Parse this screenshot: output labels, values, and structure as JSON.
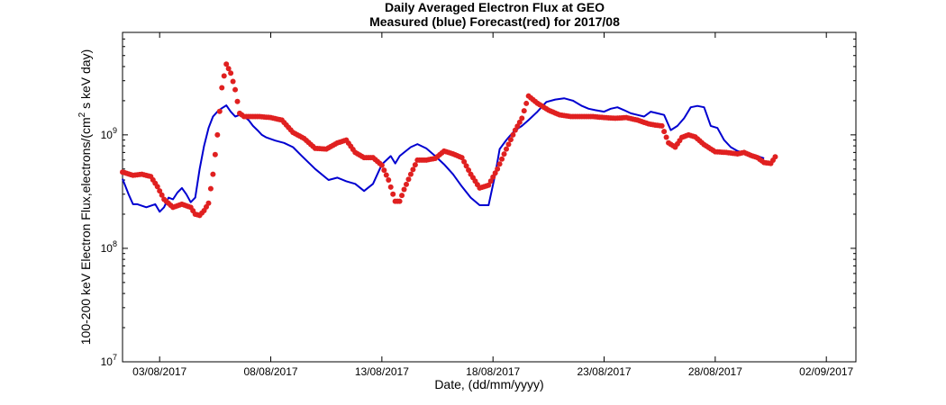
{
  "chart_data": {
    "type": "line",
    "title": [
      "Daily Averaged Electron Flux at GEO",
      "Measured (blue) Forecast(red) for 2017/08"
    ],
    "xlabel": "Date, (dd/mm/yyyy)",
    "ylabel": "100-200 keV Electron Flux,electrons/(cm² s keV day)",
    "x_axis": {
      "unit": "days since 01/08/2017",
      "range": [
        0.33,
        33.33
      ],
      "ticks": [
        {
          "value": 2,
          "label": "03/08/2017"
        },
        {
          "value": 7,
          "label": "08/08/2017"
        },
        {
          "value": 12,
          "label": "13/08/2017"
        },
        {
          "value": 17,
          "label": "18/08/2017"
        },
        {
          "value": 22,
          "label": "23/08/2017"
        },
        {
          "value": 27,
          "label": "28/08/2017"
        },
        {
          "value": 32,
          "label": "02/09/2017"
        }
      ]
    },
    "y_axis": {
      "scale": "log",
      "range": [
        10000000.0,
        8000000000.0
      ],
      "ticks": [
        {
          "value": 10000000.0,
          "base": "10",
          "exp": "7"
        },
        {
          "value": 100000000.0,
          "base": "10",
          "exp": "8"
        },
        {
          "value": 1000000000.0,
          "base": "10",
          "exp": "9"
        }
      ]
    },
    "grid": false,
    "series": [
      {
        "name": "Measured",
        "color": "#0000d0",
        "style": "line",
        "x": [
          0.33,
          0.6,
          0.8,
          1.0,
          1.4,
          1.8,
          2.0,
          2.2,
          2.4,
          2.6,
          2.8,
          3.0,
          3.2,
          3.4,
          3.6,
          3.8,
          4.0,
          4.2,
          4.4,
          4.6,
          4.8,
          5.0,
          5.2,
          5.4,
          5.6,
          5.8,
          6.0,
          6.2,
          6.4,
          6.6,
          6.8,
          7.0,
          7.2,
          7.6,
          8.0,
          8.4,
          9.0,
          9.6,
          10.0,
          10.4,
          10.8,
          11.2,
          11.6,
          12.0,
          12.4,
          12.6,
          12.8,
          13.0,
          13.3,
          13.6,
          14.0,
          14.4,
          14.8,
          15.2,
          15.6,
          16.0,
          16.4,
          16.8,
          17.1,
          17.3,
          17.6,
          17.8,
          18.0,
          18.3,
          18.6,
          19.0,
          19.4,
          19.8,
          20.2,
          20.6,
          21.0,
          21.3,
          21.6,
          22.0,
          22.3,
          22.6,
          22.9,
          23.2,
          23.5,
          23.8,
          24.1,
          24.4,
          24.7,
          25.0,
          25.3,
          25.6,
          25.9,
          26.2,
          26.5,
          26.8,
          27.1,
          27.4,
          27.7,
          28.0,
          28.3,
          28.6,
          28.9,
          29.2
        ],
        "y": [
          410000000.0,
          300000000.0,
          245000000.0,
          245000000.0,
          230000000.0,
          245000000.0,
          210000000.0,
          230000000.0,
          280000000.0,
          270000000.0,
          310000000.0,
          340000000.0,
          300000000.0,
          255000000.0,
          280000000.0,
          500000000.0,
          800000000.0,
          1150000000.0,
          1450000000.0,
          1600000000.0,
          1720000000.0,
          1820000000.0,
          1600000000.0,
          1450000000.0,
          1500000000.0,
          1450000000.0,
          1350000000.0,
          1200000000.0,
          1100000000.0,
          1000000000.0,
          950000000.0,
          920000000.0,
          890000000.0,
          850000000.0,
          780000000.0,
          650000000.0,
          500000000.0,
          400000000.0,
          420000000.0,
          390000000.0,
          370000000.0,
          320000000.0,
          370000000.0,
          550000000.0,
          650000000.0,
          560000000.0,
          650000000.0,
          700000000.0,
          780000000.0,
          830000000.0,
          760000000.0,
          650000000.0,
          550000000.0,
          450000000.0,
          350000000.0,
          280000000.0,
          240000000.0,
          240000000.0,
          450000000.0,
          750000000.0,
          900000000.0,
          1000000000.0,
          1100000000.0,
          1200000000.0,
          1350000000.0,
          1600000000.0,
          1950000000.0,
          2050000000.0,
          2100000000.0,
          2000000000.0,
          1800000000.0,
          1700000000.0,
          1650000000.0,
          1600000000.0,
          1700000000.0,
          1750000000.0,
          1650000000.0,
          1550000000.0,
          1500000000.0,
          1450000000.0,
          1600000000.0,
          1550000000.0,
          1500000000.0,
          1100000000.0,
          1200000000.0,
          1400000000.0,
          1750000000.0,
          1800000000.0,
          1750000000.0,
          1200000000.0,
          1150000000.0,
          900000000.0,
          780000000.0,
          720000000.0,
          700000000.0,
          680000000.0,
          650000000.0,
          620000000.0
        ]
      },
      {
        "name": "Forecast",
        "color": "#e02020",
        "style": "markers",
        "x": [
          0.33,
          0.8,
          1.2,
          1.6,
          1.9,
          2.2,
          2.6,
          3.0,
          3.4,
          3.6,
          3.8,
          4.0,
          4.2,
          4.4,
          4.6,
          4.8,
          5.0,
          5.2,
          5.4,
          5.6,
          5.8,
          6.0,
          6.5,
          7.0,
          7.5,
          8.0,
          8.5,
          9.0,
          9.5,
          10.0,
          10.4,
          10.8,
          11.2,
          11.6,
          12.0,
          12.3,
          12.6,
          12.8,
          13.0,
          13.3,
          13.6,
          14.0,
          14.4,
          14.8,
          15.2,
          15.6,
          16.0,
          16.4,
          16.8,
          17.2,
          17.6,
          18.0,
          18.3,
          18.6,
          19.0,
          19.5,
          20.0,
          20.5,
          21.0,
          21.5,
          22.0,
          22.5,
          23.0,
          23.5,
          24.0,
          24.3,
          24.6,
          24.9,
          25.2,
          25.5,
          25.8,
          26.1,
          26.5,
          27.0,
          27.5,
          28.0,
          28.3,
          28.6,
          28.9,
          29.2,
          29.5,
          29.7
        ],
        "y": [
          470000000.0,
          440000000.0,
          450000000.0,
          430000000.0,
          350000000.0,
          270000000.0,
          230000000.0,
          245000000.0,
          230000000.0,
          200000000.0,
          195000000.0,
          215000000.0,
          250000000.0,
          450000000.0,
          1000000000.0,
          2600000000.0,
          4200000000.0,
          3500000000.0,
          2500000000.0,
          1550000000.0,
          1450000000.0,
          1450000000.0,
          1450000000.0,
          1420000000.0,
          1350000000.0,
          1050000000.0,
          930000000.0,
          760000000.0,
          750000000.0,
          850000000.0,
          900000000.0,
          700000000.0,
          630000000.0,
          630000000.0,
          540000000.0,
          400000000.0,
          260000000.0,
          260000000.0,
          330000000.0,
          450000000.0,
          600000000.0,
          600000000.0,
          620000000.0,
          720000000.0,
          680000000.0,
          630000000.0,
          450000000.0,
          340000000.0,
          360000000.0,
          500000000.0,
          750000000.0,
          1100000000.0,
          1400000000.0,
          2200000000.0,
          1900000000.0,
          1650000000.0,
          1500000000.0,
          1450000000.0,
          1450000000.0,
          1450000000.0,
          1420000000.0,
          1400000000.0,
          1420000000.0,
          1350000000.0,
          1250000000.0,
          1220000000.0,
          1200000000.0,
          850000000.0,
          780000000.0,
          950000000.0,
          1000000000.0,
          960000000.0,
          820000000.0,
          710000000.0,
          700000000.0,
          680000000.0,
          700000000.0,
          660000000.0,
          630000000.0,
          570000000.0,
          560000000.0,
          640000000.0
        ]
      }
    ]
  }
}
